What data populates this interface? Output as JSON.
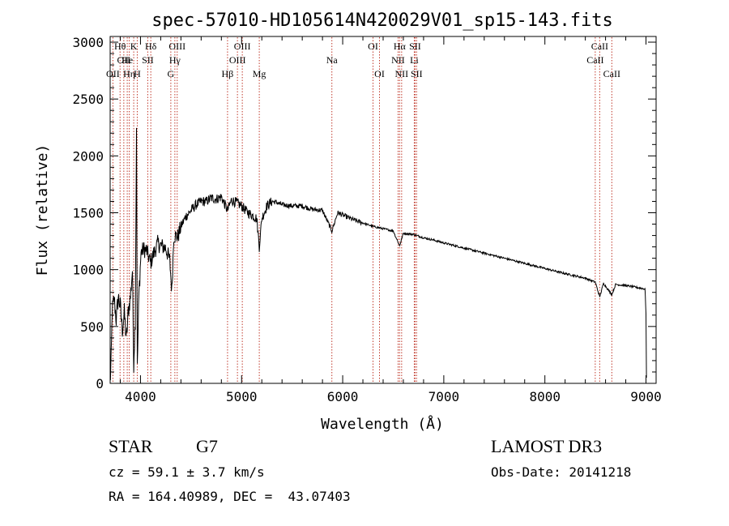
{
  "chart_data": {
    "type": "line",
    "title": "spec-57010-HD105614N420029V01_sp15-143.fits",
    "xlabel": "Wavelength (Å)",
    "ylabel": "Flux (relative)",
    "xlim": [
      3700,
      9100
    ],
    "ylim": [
      0,
      3050
    ],
    "x_ticks": [
      4000,
      5000,
      6000,
      7000,
      8000,
      9000
    ],
    "x_tick_labels": [
      "4000",
      "5000",
      "6000",
      "7000",
      "8000",
      "9000"
    ],
    "y_ticks": [
      0,
      500,
      1000,
      1500,
      2000,
      2500,
      3000
    ],
    "y_tick_labels": [
      "0",
      "500",
      "1000",
      "1500",
      "2000",
      "2500",
      "3000"
    ],
    "spectrum_anchors": [
      [
        3700,
        0
      ],
      [
        3710,
        200
      ],
      [
        3720,
        640
      ],
      [
        3740,
        740
      ],
      [
        3760,
        560
      ],
      [
        3780,
        760
      ],
      [
        3800,
        680
      ],
      [
        3820,
        470
      ],
      [
        3840,
        620
      ],
      [
        3860,
        380
      ],
      [
        3880,
        640
      ],
      [
        3900,
        760
      ],
      [
        3920,
        1000
      ],
      [
        3933,
        180
      ],
      [
        3948,
        560
      ],
      [
        3960,
        2260
      ],
      [
        3968,
        120
      ],
      [
        3985,
        800
      ],
      [
        4005,
        1150
      ],
      [
        4030,
        1180
      ],
      [
        4060,
        1170
      ],
      [
        4100,
        1060
      ],
      [
        4130,
        1140
      ],
      [
        4170,
        1230
      ],
      [
        4200,
        1210
      ],
      [
        4250,
        1190
      ],
      [
        4290,
        1080
      ],
      [
        4310,
        810
      ],
      [
        4330,
        1300
      ],
      [
        4370,
        1290
      ],
      [
        4400,
        1380
      ],
      [
        4450,
        1470
      ],
      [
        4500,
        1520
      ],
      [
        4550,
        1570
      ],
      [
        4600,
        1600
      ],
      [
        4650,
        1600
      ],
      [
        4700,
        1630
      ],
      [
        4750,
        1620
      ],
      [
        4800,
        1640
      ],
      [
        4861,
        1520
      ],
      [
        4900,
        1610
      ],
      [
        4950,
        1590
      ],
      [
        5000,
        1560
      ],
      [
        5050,
        1510
      ],
      [
        5100,
        1480
      ],
      [
        5150,
        1450
      ],
      [
        5175,
        1200
      ],
      [
        5200,
        1450
      ],
      [
        5250,
        1560
      ],
      [
        5300,
        1600
      ],
      [
        5350,
        1590
      ],
      [
        5400,
        1570
      ],
      [
        5500,
        1560
      ],
      [
        5600,
        1560
      ],
      [
        5700,
        1530
      ],
      [
        5800,
        1520
      ],
      [
        5893,
        1340
      ],
      [
        5950,
        1500
      ],
      [
        6000,
        1480
      ],
      [
        6100,
        1440
      ],
      [
        6200,
        1410
      ],
      [
        6300,
        1380
      ],
      [
        6400,
        1360
      ],
      [
        6500,
        1340
      ],
      [
        6563,
        1210
      ],
      [
        6600,
        1320
      ],
      [
        6700,
        1310
      ],
      [
        6800,
        1280
      ],
      [
        6900,
        1260
      ],
      [
        7000,
        1235
      ],
      [
        7200,
        1190
      ],
      [
        7400,
        1145
      ],
      [
        7600,
        1100
      ],
      [
        7800,
        1055
      ],
      [
        8000,
        1010
      ],
      [
        8200,
        965
      ],
      [
        8400,
        925
      ],
      [
        8498,
        890
      ],
      [
        8542,
        760
      ],
      [
        8580,
        880
      ],
      [
        8662,
        780
      ],
      [
        8700,
        870
      ],
      [
        8800,
        860
      ],
      [
        8900,
        845
      ],
      [
        8990,
        830
      ],
      [
        9000,
        620
      ],
      [
        9005,
        50
      ]
    ],
    "line_markers": [
      {
        "x": 3798,
        "label": "Hθ",
        "row": 1
      },
      {
        "x": 3835,
        "label": "OII",
        "row": 2
      },
      {
        "x": 3727,
        "label": "OII",
        "row": 3
      },
      {
        "x": 3869,
        "label": "He",
        "row": 2
      },
      {
        "x": 3889,
        "label": "Hη",
        "row": 3
      },
      {
        "x": 3933,
        "label": "K",
        "row": 1
      },
      {
        "x": 3968,
        "label": "H",
        "row": 3
      },
      {
        "x": 4072,
        "label": "SII",
        "row": 2
      },
      {
        "x": 4102,
        "label": "Hδ",
        "row": 1
      },
      {
        "x": 4340,
        "label": "Hγ",
        "row": 2
      },
      {
        "x": 4300,
        "label": "G",
        "row": 3
      },
      {
        "x": 4363,
        "label": "OIII",
        "row": 1
      },
      {
        "x": 4861,
        "label": "Hβ",
        "row": 3
      },
      {
        "x": 4959,
        "label": "OIII",
        "row": 2
      },
      {
        "x": 5007,
        "label": "OIII",
        "row": 1
      },
      {
        "x": 5175,
        "label": "Mg",
        "row": 3
      },
      {
        "x": 5893,
        "label": "Na",
        "row": 2
      },
      {
        "x": 6300,
        "label": "OI",
        "row": 1
      },
      {
        "x": 6364,
        "label": "OI",
        "row": 3
      },
      {
        "x": 6548,
        "label": "NII",
        "row": 2
      },
      {
        "x": 6563,
        "label": "Hα",
        "row": 1
      },
      {
        "x": 6583,
        "label": "NII",
        "row": 3
      },
      {
        "x": 6708,
        "label": "Li",
        "row": 2
      },
      {
        "x": 6716,
        "label": "SII",
        "row": 1
      },
      {
        "x": 6731,
        "label": "SII",
        "row": 3
      },
      {
        "x": 8498,
        "label": "CaII",
        "row": 2
      },
      {
        "x": 8542,
        "label": "CaII",
        "row": 1
      },
      {
        "x": 8662,
        "label": "CaII",
        "row": 3
      }
    ]
  },
  "info": {
    "object_type": "STAR",
    "subclass": "G7",
    "survey": "LAMOST DR3",
    "cz_text": "cz = 59.1 ± 3.7 km/s",
    "obs_date_text": "Obs-Date: 20141218",
    "coords_text": "RA = 164.40989, DEC =  43.07403"
  },
  "colors": {
    "spectrum": "#000000",
    "marker_line": "#c0392b",
    "axis": "#000000"
  }
}
